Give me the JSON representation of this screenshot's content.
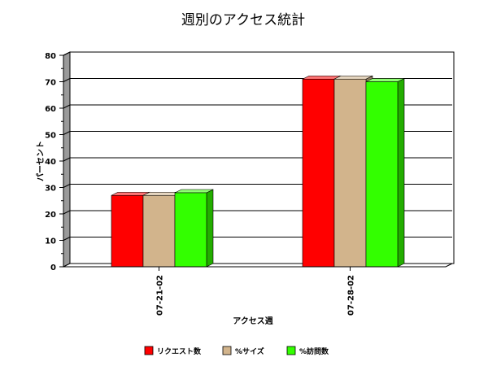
{
  "chart_data": {
    "type": "bar",
    "title": "週別のアクセス統計",
    "xlabel": "アクセス週",
    "ylabel": "パーセント",
    "categories": [
      "07-21-02",
      "07-28-02"
    ],
    "series": [
      {
        "name": "リクエスト数",
        "values": [
          27,
          71
        ],
        "color": "#ff0000"
      },
      {
        "name": "%サイズ",
        "values": [
          27,
          71
        ],
        "color": "#d2b48c"
      },
      {
        "name": "%訪問数",
        "values": [
          28,
          70
        ],
        "color": "#33ff00"
      }
    ],
    "ylim": [
      0,
      80
    ],
    "yticks": [
      "0",
      "10",
      "20",
      "30",
      "40",
      "50",
      "60",
      "70",
      "80"
    ],
    "grid": true,
    "style": "3d",
    "legend_position": "bottom"
  }
}
